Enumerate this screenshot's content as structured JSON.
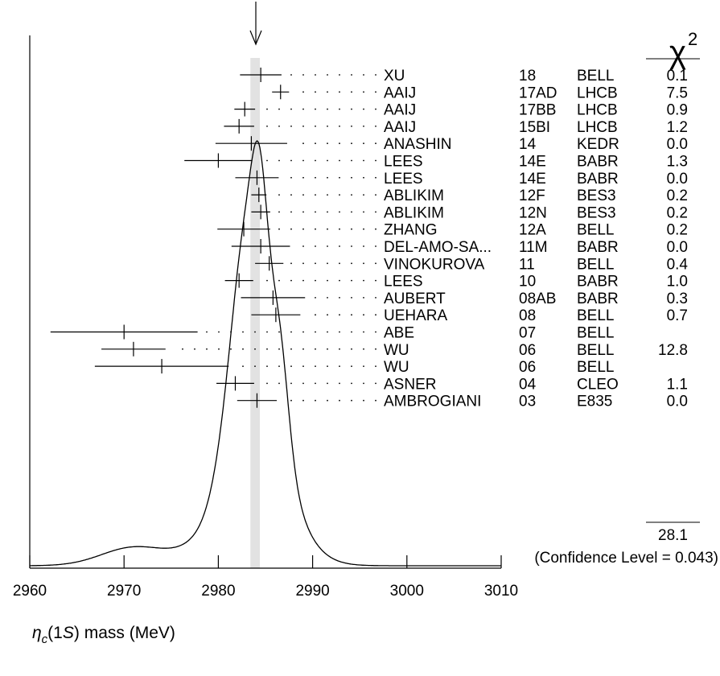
{
  "chart_data": {
    "type": "scatter",
    "title": "",
    "xlabel": "ηc(1S) mass (MeV)",
    "xlabel_parts": {
      "symbol": "η",
      "sub": "c",
      "rest": "(1",
      "s": "S",
      "close": ")",
      "unit": " mass (MeV)"
    },
    "ylabel": "",
    "xlim": [
      2960,
      3010
    ],
    "xticks": [
      2960,
      2970,
      2980,
      2990,
      3000,
      3010
    ],
    "average": 2983.9,
    "average_error": 0.5,
    "chi2_header": "χ",
    "chi2_header_sup": "2",
    "chi2_total": "28.1",
    "confidence_level": "(Confidence Level = 0.043)",
    "ideogram_peak": 2984.0,
    "ideogram_shoulder": 2970.5,
    "measurements": [
      {
        "author": "XU",
        "ref": "18",
        "exp": "BELL",
        "chi2": "0.1",
        "value": 2984.5,
        "error": 2.2
      },
      {
        "author": "AAIJ",
        "ref": "17AD",
        "exp": "LHCB",
        "chi2": "7.5",
        "value": 2986.6,
        "error": 0.9
      },
      {
        "author": "AAIJ",
        "ref": "17BB",
        "exp": "LHCB",
        "chi2": "0.9",
        "value": 2982.8,
        "error": 1.1
      },
      {
        "author": "AAIJ",
        "ref": "15BI",
        "exp": "LHCB",
        "chi2": "1.2",
        "value": 2982.2,
        "error": 1.6
      },
      {
        "author": "ANASHIN",
        "ref": "14",
        "exp": "KEDR",
        "chi2": "0.0",
        "value": 2983.5,
        "error": 3.8
      },
      {
        "author": "LEES",
        "ref": "14E",
        "exp": "BABR",
        "chi2": "1.3",
        "value": 2980.0,
        "error": 3.6
      },
      {
        "author": "LEES",
        "ref": "14E",
        "exp": "BABR",
        "chi2": "0.0",
        "value": 2984.1,
        "error": 2.3
      },
      {
        "author": "ABLIKIM",
        "ref": "12F",
        "exp": "BES3",
        "chi2": "0.2",
        "value": 2984.3,
        "error": 0.8
      },
      {
        "author": "ABLIKIM",
        "ref": "12N",
        "exp": "BES3",
        "chi2": "0.2",
        "value": 2984.5,
        "error": 1.0
      },
      {
        "author": "ZHANG",
        "ref": "12A",
        "exp": "BELL",
        "chi2": "0.2",
        "value": 2982.7,
        "error": 2.8
      },
      {
        "author": "DEL-AMO-SA...",
        "ref": "11M",
        "exp": "BABR",
        "chi2": "0.0",
        "value": 2984.5,
        "error": 3.1
      },
      {
        "author": "VINOKUROVA",
        "ref": "11",
        "exp": "BELL",
        "chi2": "0.4",
        "value": 2985.4,
        "error": 1.5
      },
      {
        "author": "LEES",
        "ref": "10",
        "exp": "BABR",
        "chi2": "1.0",
        "value": 2982.2,
        "error": 1.5
      },
      {
        "author": "AUBERT",
        "ref": "08AB",
        "exp": "BABR",
        "chi2": "0.3",
        "value": 2985.8,
        "error": 3.4
      },
      {
        "author": "UEHARA",
        "ref": "08",
        "exp": "BELL",
        "chi2": "0.7",
        "value": 2986.1,
        "error": 2.6
      },
      {
        "author": "ABE",
        "ref": "07",
        "exp": "BELL",
        "chi2": "",
        "value": 2970.0,
        "error": 7.8
      },
      {
        "author": "WU",
        "ref": "06",
        "exp": "BELL",
        "chi2": "12.8",
        "value": 2971.0,
        "error": 3.4
      },
      {
        "author": "WU",
        "ref": "06",
        "exp": "BELL",
        "chi2": "",
        "value": 2974.0,
        "error": 7.1
      },
      {
        "author": "ASNER",
        "ref": "04",
        "exp": "CLEO",
        "chi2": "1.1",
        "value": 2981.8,
        "error": 2.0
      },
      {
        "author": "AMBROGIANI",
        "ref": "03",
        "exp": "E835",
        "chi2": "0.0",
        "value": 2984.1,
        "error": 2.1
      }
    ]
  }
}
